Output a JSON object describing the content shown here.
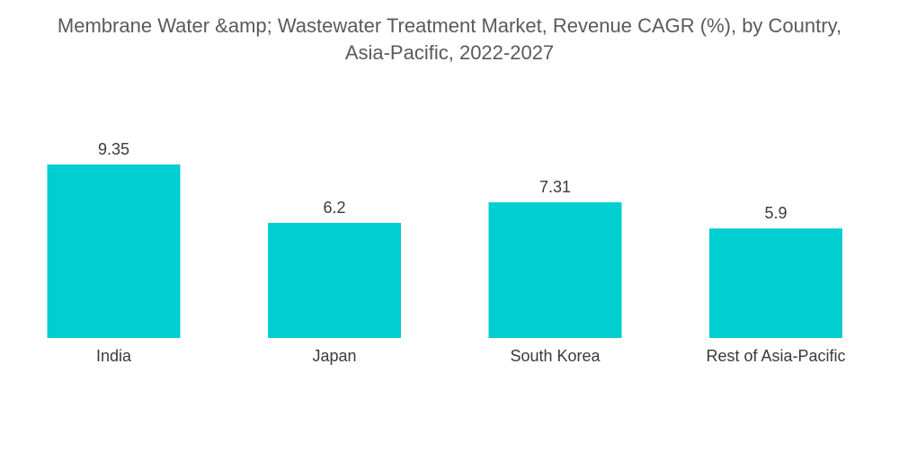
{
  "title_line1": "Membrane Water &amp; Wastewater Treatment Market, Revenue CAGR (%), by Country,",
  "title_line2": "Asia-Pacific, 2022-2027",
  "chart_data": {
    "type": "bar",
    "title": "Membrane Water &amp; Wastewater Treatment Market, Revenue CAGR (%), by Country, Asia-Pacific, 2022-2027",
    "categories": [
      "India",
      "Japan",
      "South Korea",
      "Rest of Asia-Pacific"
    ],
    "values": [
      9.35,
      6.2,
      7.31,
      5.9
    ],
    "value_labels": [
      "9.35",
      "6.2",
      "7.31",
      "5.9"
    ],
    "xlabel": "",
    "ylabel": "",
    "ylim": [
      0,
      9.35
    ],
    "bar_color": "#00CED1",
    "grid": false,
    "legend": "none"
  }
}
